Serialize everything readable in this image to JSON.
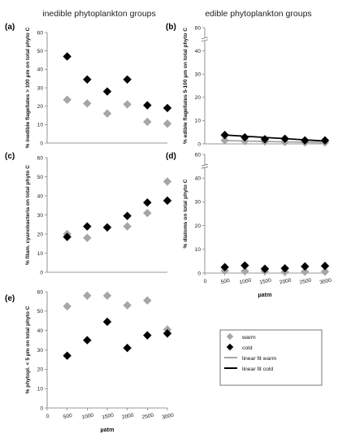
{
  "figure": {
    "col_titles": [
      "inedible phytoplankton groups",
      "edible phytoplankton groups"
    ],
    "legend": {
      "warm": "warm",
      "cold": "cold",
      "linear_warm": "linear fit warm",
      "linear_cold": "linear fit cold"
    },
    "colors": {
      "warm": "#a6a6a6",
      "cold": "#000000"
    }
  },
  "chart_data": [
    {
      "panel": "(a)",
      "type": "scatter",
      "ylabel": "% inedible flagellates > 100 µm on total phyto C",
      "ylim": [
        0,
        60
      ],
      "yticks": [
        0,
        10,
        20,
        30,
        40,
        50,
        60
      ],
      "x": [
        500,
        1000,
        1500,
        2000,
        2500,
        3000
      ],
      "series": [
        {
          "name": "warm",
          "values": [
            23.5,
            21.5,
            16,
            21,
            11.5,
            10.5
          ]
        },
        {
          "name": "cold",
          "values": [
            47,
            34.5,
            28,
            34.5,
            20.5,
            19
          ]
        }
      ]
    },
    {
      "panel": "(b)",
      "type": "scatter",
      "ylabel": "% edible flagellates 5-100 µm on total phyto C",
      "ylim": [
        0,
        60
      ],
      "yticks": [
        0,
        10,
        20,
        30,
        40,
        60
      ],
      "axis_break": true,
      "x": [
        500,
        1000,
        1500,
        2000,
        2500,
        3000
      ],
      "series": [
        {
          "name": "warm",
          "values": [
            1.5,
            1.2,
            1,
            0.8,
            0.6,
            0.6
          ]
        },
        {
          "name": "cold",
          "values": [
            3.8,
            2.8,
            2,
            2.2,
            1.5,
            1.5
          ]
        }
      ],
      "fits": [
        {
          "name": "linear fit warm",
          "y_at_xmin": 1.4,
          "y_at_xmax": 0.5
        },
        {
          "name": "linear fit cold",
          "y_at_xmin": 3.8,
          "y_at_xmax": 1.2
        }
      ]
    },
    {
      "panel": "(c)",
      "type": "scatter",
      "ylabel": "% filam. cyanobacteria on total phyto C",
      "ylim": [
        0,
        60
      ],
      "yticks": [
        0,
        10,
        20,
        30,
        40,
        50,
        60
      ],
      "x": [
        500,
        1000,
        1500,
        2000,
        2500,
        3000
      ],
      "series": [
        {
          "name": "warm",
          "values": [
            20,
            18,
            23.5,
            24,
            31,
            47.5
          ]
        },
        {
          "name": "cold",
          "values": [
            18.5,
            24,
            23.5,
            29.5,
            36.5,
            37.5
          ]
        }
      ]
    },
    {
      "panel": "(d)",
      "type": "scatter",
      "ylabel": "% diatoms on total phyto C",
      "ylim": [
        0,
        60
      ],
      "yticks": [
        0,
        10,
        20,
        30,
        40,
        60
      ],
      "axis_break": true,
      "x": [
        500,
        1000,
        1500,
        2000,
        2500,
        3000
      ],
      "xticks": [
        0,
        500,
        1000,
        1500,
        2000,
        2500,
        3000
      ],
      "xlabel": "µatm",
      "series": [
        {
          "name": "warm",
          "values": [
            1,
            0.8,
            0.8,
            0.5,
            0.6,
            0.6
          ]
        },
        {
          "name": "cold",
          "values": [
            2.5,
            3.2,
            1.8,
            2,
            2.8,
            3
          ]
        }
      ]
    },
    {
      "panel": "(e)",
      "type": "scatter",
      "ylabel": "% phytopl. < 5 µm on total phyto C",
      "ylim": [
        0,
        60
      ],
      "yticks": [
        0,
        10,
        20,
        30,
        40,
        50,
        60
      ],
      "x": [
        500,
        1000,
        1500,
        2000,
        2500,
        3000
      ],
      "xticks": [
        0,
        500,
        1000,
        1500,
        2000,
        2500,
        3000
      ],
      "xlabel": "µatm",
      "series": [
        {
          "name": "warm",
          "values": [
            52.5,
            58,
            58,
            53,
            55.5,
            40.5
          ]
        },
        {
          "name": "cold",
          "values": [
            27,
            35,
            44.5,
            31,
            37.5,
            38.5
          ]
        }
      ]
    }
  ]
}
